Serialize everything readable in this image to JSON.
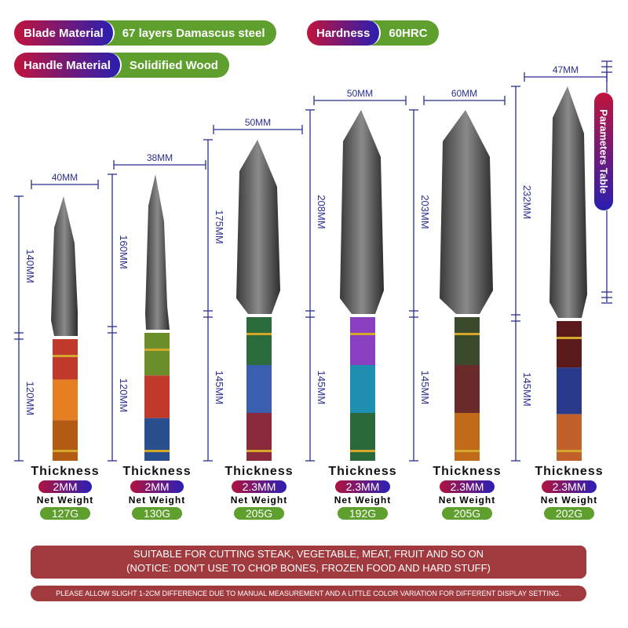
{
  "specs": {
    "blade_material": {
      "label": "Blade Material",
      "value": "67 layers Damascus steel"
    },
    "hardness": {
      "label": "Hardness",
      "value": "60HRC"
    },
    "handle_material": {
      "label": "Handle Material",
      "value": "Solidified Wood"
    }
  },
  "parameters_table": "Parameters Table",
  "thickness_label": "Thickness",
  "weight_label": "Net Weight",
  "knives": [
    {
      "width": "40MM",
      "blade": "140MM",
      "handle": "120MM",
      "thickness": "2MM",
      "weight": "127G"
    },
    {
      "width": "38MM",
      "blade": "160MM",
      "handle": "120MM",
      "thickness": "2MM",
      "weight": "130G"
    },
    {
      "width": "50MM",
      "blade": "175MM",
      "handle": "145MM",
      "thickness": "2.3MM",
      "weight": "205G"
    },
    {
      "width": "50MM",
      "blade": "208MM",
      "handle": "145MM",
      "thickness": "2.3MM",
      "weight": "192G"
    },
    {
      "width": "60MM",
      "blade": "203MM",
      "handle": "145MM",
      "thickness": "2.3MM",
      "weight": "205G"
    },
    {
      "width": "47MM",
      "blade": "232MM",
      "handle": "145MM",
      "thickness": "2.3MM",
      "weight": "202G"
    }
  ],
  "notice": {
    "line1": "SUITABLE FOR CUTTING STEAK, VEGETABLE, MEAT, FRUIT AND SO ON",
    "line2": "(NOTICE: DON'T USE TO CHOP BONES, FROZEN FOOD AND HARD STUFF)",
    "disclaimer": "PLEASE ALLOW SLIGHT 1-2CM DIFFERENCE DUE TO MANUAL MEASUREMENT AND A LITTLE COLOR VARIATION FOR DIFFERENT DISPLAY SETTING."
  },
  "colors": {
    "accent_green": "#5e9f2d",
    "gradient_red": "#c0143c",
    "gradient_blue": "#2a1fb0",
    "dimension_blue": "#2b2f8f",
    "banner": "#a13a3e"
  }
}
